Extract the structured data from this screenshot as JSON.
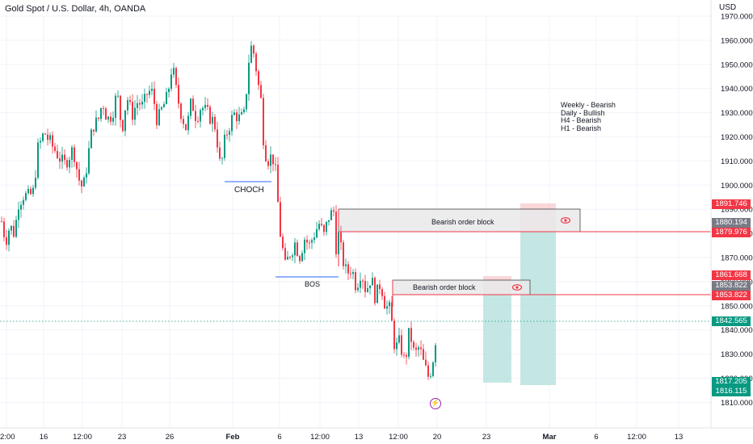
{
  "symbol_title": "Gold Spot / U.S. Dollar, 4h, OANDA",
  "currency": "USD",
  "price_axis": {
    "ticks": [
      "1970.000",
      "1960.000",
      "1950.000",
      "1940.000",
      "1930.000",
      "1920.000",
      "1910.000",
      "1900.000",
      "1890.000",
      "1880.000",
      "1870.000",
      "1860.000",
      "1850.000",
      "1840.000",
      "1830.000",
      "1820.000",
      "1810.000"
    ],
    "tags": [
      {
        "name": "price-tag-upper-block-top",
        "label": "1891.746",
        "color": "#f23645"
      },
      {
        "name": "price-tag-upper-block-mid",
        "label": "1880.194",
        "color": "#787b86"
      },
      {
        "name": "price-tag-upper-block-line",
        "label": "1879.976",
        "color": "#f23645"
      },
      {
        "name": "price-tag-lower-block-top",
        "label": "1861.668",
        "color": "#f23645"
      },
      {
        "name": "price-tag-lower-block-mid",
        "label": "1853.822",
        "color": "#787b86"
      },
      {
        "name": "price-tag-lower-block-line",
        "label": "1853.822",
        "color": "#f23645"
      },
      {
        "name": "price-tag-current",
        "label": "1842.565",
        "color": "#089981"
      },
      {
        "name": "price-tag-target-1",
        "label": "1817.205",
        "color": "#089981"
      },
      {
        "name": "price-tag-target-2",
        "label": "1816.115",
        "color": "#089981"
      }
    ]
  },
  "time_axis": {
    "ticks": [
      ":2:00",
      "16",
      "12:00",
      "23",
      "26",
      "Feb",
      "6",
      "12:00",
      "13",
      "12:00",
      "20",
      "23",
      "Mar",
      "6",
      "12:00",
      "13"
    ]
  },
  "annotations": {
    "choch": "CHOCH",
    "bos": "BOS",
    "upper_block": "Bearish order block",
    "lower_block": "Bearish order block"
  },
  "bias_notes": [
    "Weekly - Bearish",
    "Daily - Bullish",
    "H4 - Bearish",
    "H1 - Bearish"
  ],
  "colors": {
    "up": "#089981",
    "down": "#f23645",
    "structure_line": "#2962ff",
    "block_fill": "#e9e9ea",
    "target_fill": "#b2dfdb",
    "stop_fill": "#f7c6c9",
    "alert": "#9c27b0"
  },
  "chart_data": {
    "type": "candlestick",
    "timeframe": "4h",
    "y_range": [
      1805,
      1972
    ],
    "current_price": 1842.565,
    "path_x": [
      1,
      6,
      11,
      17,
      22,
      28,
      34,
      40,
      46,
      54,
      60,
      66,
      72,
      78,
      84,
      90,
      96,
      102,
      108,
      114,
      120,
      126,
      132,
      138,
      144,
      150,
      156,
      162,
      170,
      176,
      182,
      188,
      194,
      200,
      206,
      212,
      218,
      224,
      230,
      236,
      242,
      248,
      254,
      260,
      266,
      272,
      278,
      284,
      290,
      296,
      302,
      306,
      310,
      314,
      318,
      322,
      326,
      332,
      336,
      340,
      346,
      352,
      358,
      364,
      370,
      376,
      382,
      388,
      394,
      400,
      406,
      412,
      416,
      418,
      422,
      428,
      434,
      440,
      446,
      452,
      458,
      464,
      470,
      476,
      482,
      488,
      494,
      500,
      506,
      512,
      518,
      524,
      530,
      536,
      540
    ],
    "path_y": [
      1885,
      1877,
      1883,
      1880,
      1893,
      1896,
      1895,
      1897,
      1915,
      1922,
      1918,
      1915,
      1912,
      1908,
      1912,
      1915,
      1903,
      1898,
      1912,
      1925,
      1926,
      1935,
      1927,
      1930,
      1938,
      1923,
      1937,
      1929,
      1935,
      1932,
      1939,
      1938,
      1926,
      1932,
      1936,
      1950,
      1937,
      1929,
      1923,
      1935,
      1928,
      1933,
      1930,
      1928,
      1924,
      1906,
      1920,
      1926,
      1930,
      1927,
      1929,
      1950,
      1957,
      1954,
      1943,
      1935,
      1915,
      1910,
      1913,
      1905,
      1880,
      1866,
      1872,
      1876,
      1871,
      1878,
      1875,
      1880,
      1884,
      1879,
      1887,
      1889,
      1870,
      1879,
      1871,
      1863,
      1866,
      1858,
      1865,
      1856,
      1862,
      1853,
      1860,
      1850,
      1848,
      1832,
      1835,
      1826,
      1840,
      1829,
      1833,
      1825,
      1820,
      1830,
      1842
    ]
  }
}
